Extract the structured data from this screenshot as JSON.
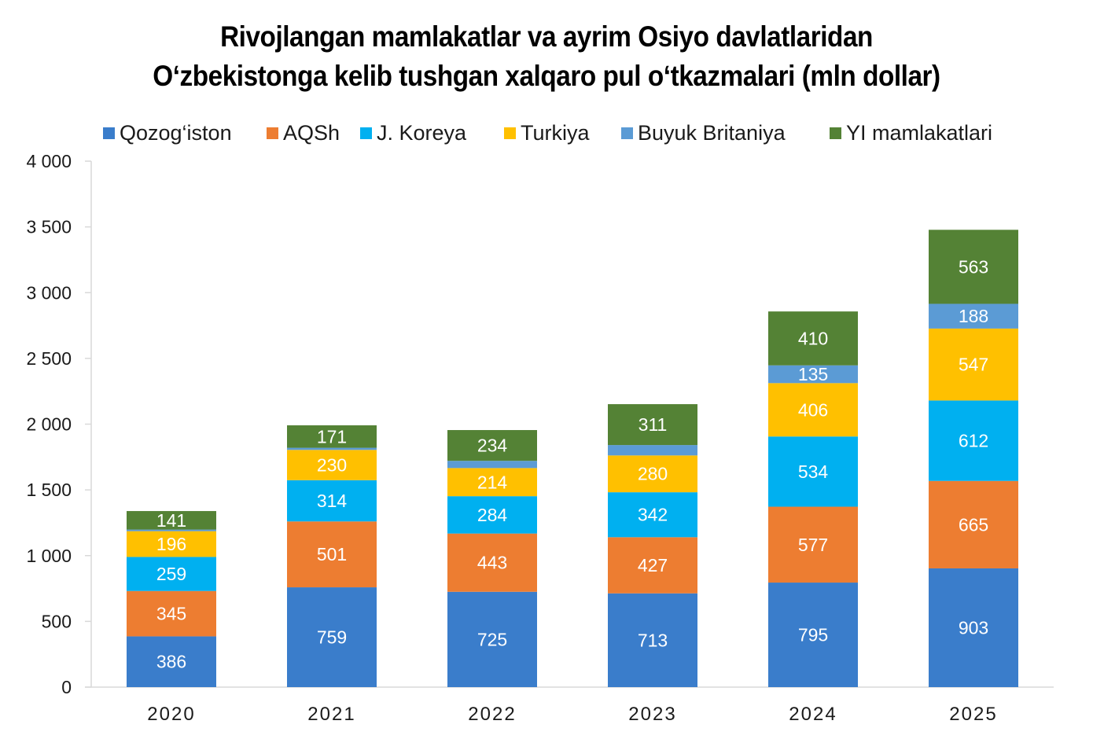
{
  "chart_data": {
    "type": "bar",
    "stacked": true,
    "title_lines": [
      "Rivojlangan mamlakatlar va ayrim Osiyo davlatlaridan",
      "O‘zbekistonga kelib tushgan xalqaro pul o‘tkazmalari (mln dollar)"
    ],
    "xlabel": "",
    "ylabel": "",
    "ylim": [
      0,
      4000
    ],
    "yticks": [
      0,
      500,
      1000,
      1500,
      2000,
      2500,
      3000,
      3500,
      4000
    ],
    "ytick_labels": [
      "0",
      "500",
      "1 000",
      "1 500",
      "2 000",
      "2 500",
      "3 000",
      "3 500",
      "4 000"
    ],
    "categories": [
      "2020",
      "2021",
      "2022",
      "2023",
      "2024",
      "2025"
    ],
    "legend_position": "top",
    "grid": false,
    "series": [
      {
        "name": "Qozog‘iston",
        "color": "#3A7DCB",
        "values": [
          386,
          759,
          725,
          713,
          795,
          903
        ],
        "labels": [
          "386",
          "759",
          "725",
          "713",
          "795",
          "903"
        ]
      },
      {
        "name": "AQSh",
        "color": "#ED7D31",
        "values": [
          345,
          501,
          443,
          427,
          577,
          665
        ],
        "labels": [
          "345",
          "501",
          "443",
          "427",
          "577",
          "665"
        ]
      },
      {
        "name": "J. Koreya",
        "color": "#00B0F0",
        "values": [
          259,
          314,
          284,
          342,
          534,
          612
        ],
        "labels": [
          "259",
          "314",
          "284",
          "342",
          "534",
          "612"
        ]
      },
      {
        "name": "Turkiya",
        "color": "#FFC000",
        "values": [
          196,
          230,
          214,
          280,
          406,
          547
        ],
        "labels": [
          "196",
          "230",
          "214",
          "280",
          "406",
          "547"
        ]
      },
      {
        "name": "Buyuk Britaniya",
        "color": "#5B9BD5",
        "values": [
          12,
          16,
          55,
          79,
          135,
          188
        ],
        "labels": [
          "",
          "",
          "",
          "",
          "135",
          "188"
        ]
      },
      {
        "name": "YI mamlakatlari",
        "color": "#548235",
        "values": [
          141,
          171,
          234,
          311,
          410,
          563
        ],
        "labels": [
          "141",
          "171",
          "234",
          "311",
          "410",
          "563"
        ]
      }
    ]
  }
}
